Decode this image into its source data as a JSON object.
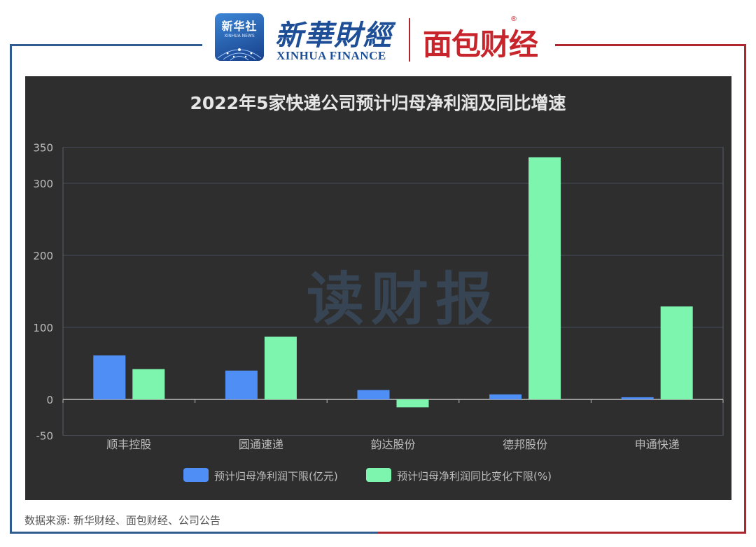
{
  "header": {
    "xinhua_badge_name": "新华社",
    "xinhua_badge_en": "XINHUA NEWS",
    "xinhua_logo_cn": "新華財經",
    "xinhua_logo_en": "XINHUA FINANCE",
    "mianbao_logo": "面包财经",
    "mianbao_reg_mark": "®"
  },
  "watermark": "读财报",
  "source_note": "数据来源: 新华财经、面包财经、公司公告",
  "colors": {
    "panel_bg": "#2e2e2e",
    "series_profit": "#4e8ef5",
    "series_growth": "#7df5ae",
    "text": "#bdbdbd",
    "title": "#e6e6e6",
    "frame_blue": "#2f5b8f",
    "frame_red": "#b0262d"
  },
  "chart_data": {
    "type": "bar",
    "title": "2022年5家快递公司预计归母净利润及同比增速",
    "categories": [
      "顺丰控股",
      "圆通速递",
      "韵达股份",
      "德邦股份",
      "申通快递"
    ],
    "series": [
      {
        "name": "预计归母净利润下限(亿元)",
        "values": [
          61,
          40,
          13,
          7,
          3
        ]
      },
      {
        "name": "预计归母净利润同比变化下限(%)",
        "values": [
          42,
          87,
          -11,
          336,
          129
        ]
      }
    ],
    "yticks": [
      -50,
      0,
      100,
      200,
      300,
      350
    ],
    "ylim": [
      -50,
      350
    ],
    "grid": true,
    "legend": "bottom"
  }
}
